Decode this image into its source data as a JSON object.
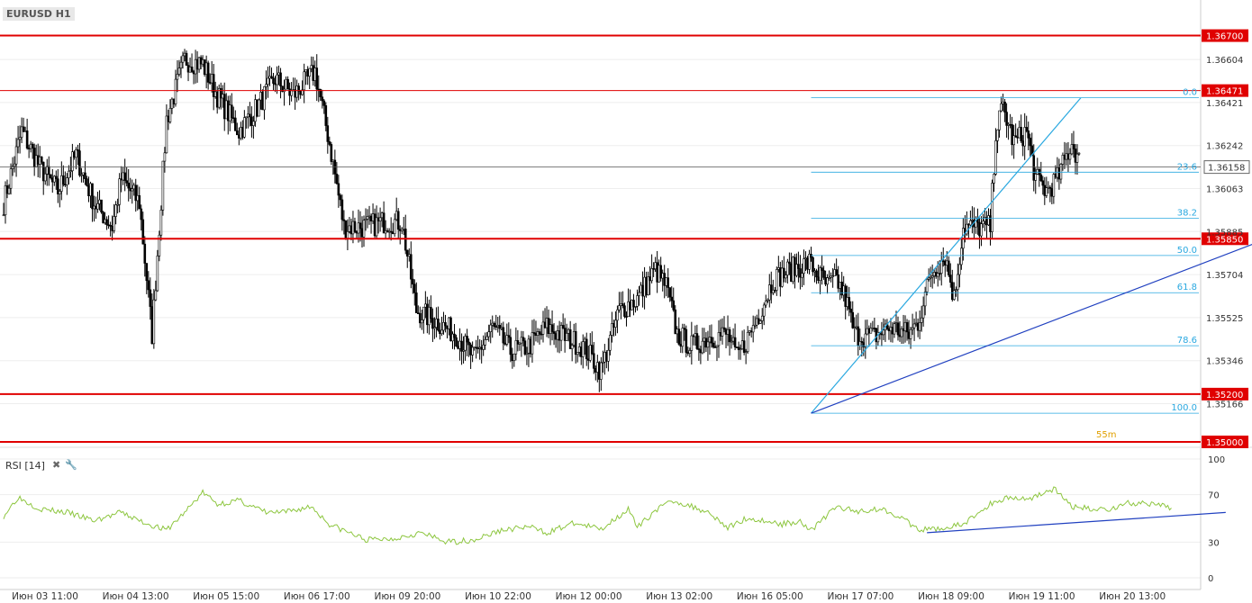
{
  "header": {
    "symbol": "EURUSD H1"
  },
  "rsi_panel": {
    "label": "RSI [14]",
    "close_icon": "close-icon",
    "settings_icon": "wrench-icon"
  },
  "timeframe_badge": "55m",
  "chart_data": [
    {
      "type": "candlestick",
      "symbol": "EURUSD H1",
      "ylim": [
        1.35,
        1.368
      ],
      "y_ticks": [
        "1.36604",
        "1.36421",
        "1.36242",
        "1.36063",
        "1.35885",
        "1.35704",
        "1.35525",
        "1.35346",
        "1.35166"
      ],
      "x_ticks": [
        "Июн 03 11:00",
        "Июн 04 13:00",
        "Июн 05 15:00",
        "Июн 06 17:00",
        "Июн 09 20:00",
        "Июн 10 22:00",
        "Июн 12 00:00",
        "Июн 13 02:00",
        "Июн 16 05:00",
        "Июн 17 07:00",
        "Июн 18 09:00",
        "Июн 19 11:00",
        "Июн 20 13:00"
      ],
      "close_anchors": [
        [
          0,
          1.36
        ],
        [
          10,
          1.363
        ],
        [
          20,
          1.3615
        ],
        [
          30,
          1.3605
        ],
        [
          40,
          1.362
        ],
        [
          50,
          1.36
        ],
        [
          60,
          1.359
        ],
        [
          65,
          1.361
        ],
        [
          75,
          1.36
        ],
        [
          82,
          1.3545
        ],
        [
          90,
          1.3635
        ],
        [
          100,
          1.366
        ],
        [
          110,
          1.3658
        ],
        [
          118,
          1.3645
        ],
        [
          130,
          1.363
        ],
        [
          140,
          1.364
        ],
        [
          150,
          1.3652
        ],
        [
          160,
          1.3645
        ],
        [
          172,
          1.3655
        ],
        [
          180,
          1.3625
        ],
        [
          188,
          1.359
        ],
        [
          200,
          1.359
        ],
        [
          210,
          1.3592
        ],
        [
          220,
          1.3592
        ],
        [
          228,
          1.3555
        ],
        [
          240,
          1.355
        ],
        [
          250,
          1.3545
        ],
        [
          260,
          1.3535
        ],
        [
          270,
          1.3548
        ],
        [
          280,
          1.3538
        ],
        [
          290,
          1.354
        ],
        [
          300,
          1.3548
        ],
        [
          310,
          1.3544
        ],
        [
          320,
          1.354
        ],
        [
          330,
          1.353
        ],
        [
          340,
          1.3555
        ],
        [
          350,
          1.356
        ],
        [
          360,
          1.3572
        ],
        [
          366,
          1.3565
        ],
        [
          372,
          1.3545
        ],
        [
          380,
          1.354
        ],
        [
          390,
          1.3544
        ],
        [
          400,
          1.3545
        ],
        [
          405,
          1.3535
        ],
        [
          412,
          1.3545
        ],
        [
          418,
          1.3555
        ],
        [
          425,
          1.3568
        ],
        [
          435,
          1.3572
        ],
        [
          445,
          1.3575
        ],
        [
          455,
          1.3565
        ],
        [
          460,
          1.3568
        ],
        [
          465,
          1.356
        ],
        [
          470,
          1.3545
        ],
        [
          480,
          1.3544
        ],
        [
          490,
          1.3548
        ],
        [
          500,
          1.3545
        ],
        [
          505,
          1.355
        ],
        [
          512,
          1.357
        ],
        [
          520,
          1.3578
        ],
        [
          525,
          1.356
        ],
        [
          530,
          1.359
        ],
        [
          538,
          1.359
        ],
        [
          545,
          1.359
        ],
        [
          548,
          1.363
        ],
        [
          552,
          1.364
        ],
        [
          558,
          1.3625
        ],
        [
          565,
          1.363
        ],
        [
          570,
          1.361
        ],
        [
          576,
          1.3605
        ],
        [
          582,
          1.361
        ],
        [
          590,
          1.3625
        ],
        [
          594,
          1.3618
        ]
      ],
      "candle_count": 595,
      "current_price": "1.36158",
      "support_resistance": [
        {
          "price": 1.367,
          "label": "1.36700"
        },
        {
          "price": 1.3647,
          "label": "1.36471"
        },
        {
          "price": 1.3585,
          "label": "1.35850"
        },
        {
          "price": 1.352,
          "label": "1.35200"
        },
        {
          "price": 1.35,
          "label": "1.35000"
        }
      ],
      "fibonacci": {
        "low": 1.3512,
        "high": 1.3644,
        "levels": [
          {
            "ratio": 0.0,
            "label": "0.0"
          },
          {
            "ratio": 0.236,
            "label": "23.6"
          },
          {
            "ratio": 0.382,
            "label": "38.2"
          },
          {
            "ratio": 0.5,
            "label": "50.0"
          },
          {
            "ratio": 0.618,
            "label": "61.8"
          },
          {
            "ratio": 0.786,
            "label": "78.6"
          },
          {
            "ratio": 1.0,
            "label": "100.0"
          }
        ]
      },
      "trendlines": [
        {
          "from": [
            446,
            1.3512
          ],
          "to": [
            595,
            1.3644
          ],
          "color": "#2aa8e0"
        },
        {
          "from": [
            446,
            1.3512
          ],
          "to": [
            715,
            1.359
          ],
          "color": "#2040c0"
        }
      ],
      "colors": {
        "up": "#ffffff",
        "down": "#000000",
        "level": "#e00000",
        "fib": "#2aa8e0"
      }
    },
    {
      "type": "line",
      "name": "RSI [14]",
      "ylim": [
        0,
        100
      ],
      "y_ticks": [
        100,
        70,
        30,
        0
      ],
      "values_anchor": [
        [
          0,
          52
        ],
        [
          8,
          68
        ],
        [
          20,
          58
        ],
        [
          35,
          55
        ],
        [
          50,
          48
        ],
        [
          65,
          55
        ],
        [
          75,
          48
        ],
        [
          90,
          40
        ],
        [
          100,
          55
        ],
        [
          110,
          72
        ],
        [
          118,
          62
        ],
        [
          130,
          65
        ],
        [
          145,
          55
        ],
        [
          155,
          55
        ],
        [
          170,
          60
        ],
        [
          180,
          45
        ],
        [
          200,
          32
        ],
        [
          215,
          33
        ],
        [
          230,
          38
        ],
        [
          245,
          30
        ],
        [
          260,
          32
        ],
        [
          275,
          40
        ],
        [
          290,
          43
        ],
        [
          300,
          38
        ],
        [
          315,
          46
        ],
        [
          330,
          41
        ],
        [
          345,
          58
        ],
        [
          350,
          42
        ],
        [
          360,
          57
        ],
        [
          370,
          65
        ],
        [
          380,
          60
        ],
        [
          390,
          55
        ],
        [
          400,
          42
        ],
        [
          410,
          50
        ],
        [
          420,
          48
        ],
        [
          430,
          45
        ],
        [
          440,
          48
        ],
        [
          446,
          40
        ],
        [
          460,
          60
        ],
        [
          470,
          56
        ],
        [
          485,
          58
        ],
        [
          495,
          52
        ],
        [
          505,
          40
        ],
        [
          520,
          42
        ],
        [
          530,
          45
        ],
        [
          545,
          62
        ],
        [
          555,
          68
        ],
        [
          565,
          66
        ],
        [
          580,
          75
        ],
        [
          590,
          60
        ],
        [
          600,
          58
        ],
        [
          612,
          58
        ],
        [
          620,
          63
        ],
        [
          632,
          62
        ],
        [
          645,
          59
        ]
      ],
      "trendline": {
        "from": [
          510,
          38
        ],
        "to": [
          675,
          55
        ],
        "color": "#2040c0"
      },
      "color": "#8dc63f"
    }
  ]
}
